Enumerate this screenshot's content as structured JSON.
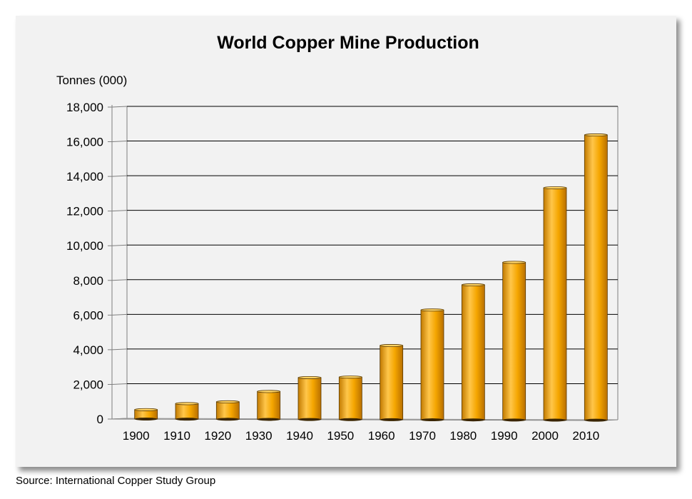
{
  "chart_data": {
    "type": "bar",
    "title": "World Copper Mine Production",
    "ylabel": "Tonnes (000)",
    "xlabel": "",
    "categories": [
      "1900",
      "1910",
      "1920",
      "1930",
      "1940",
      "1950",
      "1960",
      "1970",
      "1980",
      "1990",
      "2000",
      "2010"
    ],
    "values": [
      500,
      850,
      950,
      1550,
      2350,
      2380,
      4200,
      6250,
      7700,
      9000,
      13300,
      16350
    ],
    "ylim": [
      0,
      18000
    ],
    "yticks": [
      0,
      2000,
      4000,
      6000,
      8000,
      10000,
      12000,
      14000,
      16000,
      18000
    ],
    "ytick_labels": [
      "0",
      "2,000",
      "4,000",
      "6,000",
      "8,000",
      "10,000",
      "12,000",
      "14,000",
      "16,000",
      "18,000"
    ],
    "grid": true,
    "legend": "none",
    "colors": {
      "bar": "#f0a000",
      "bar_light": "#ffc64a",
      "bar_dark": "#c27a00",
      "grid": "#000000",
      "panel": "#f2f2f2"
    }
  },
  "source": "Source: International Copper Study Group"
}
